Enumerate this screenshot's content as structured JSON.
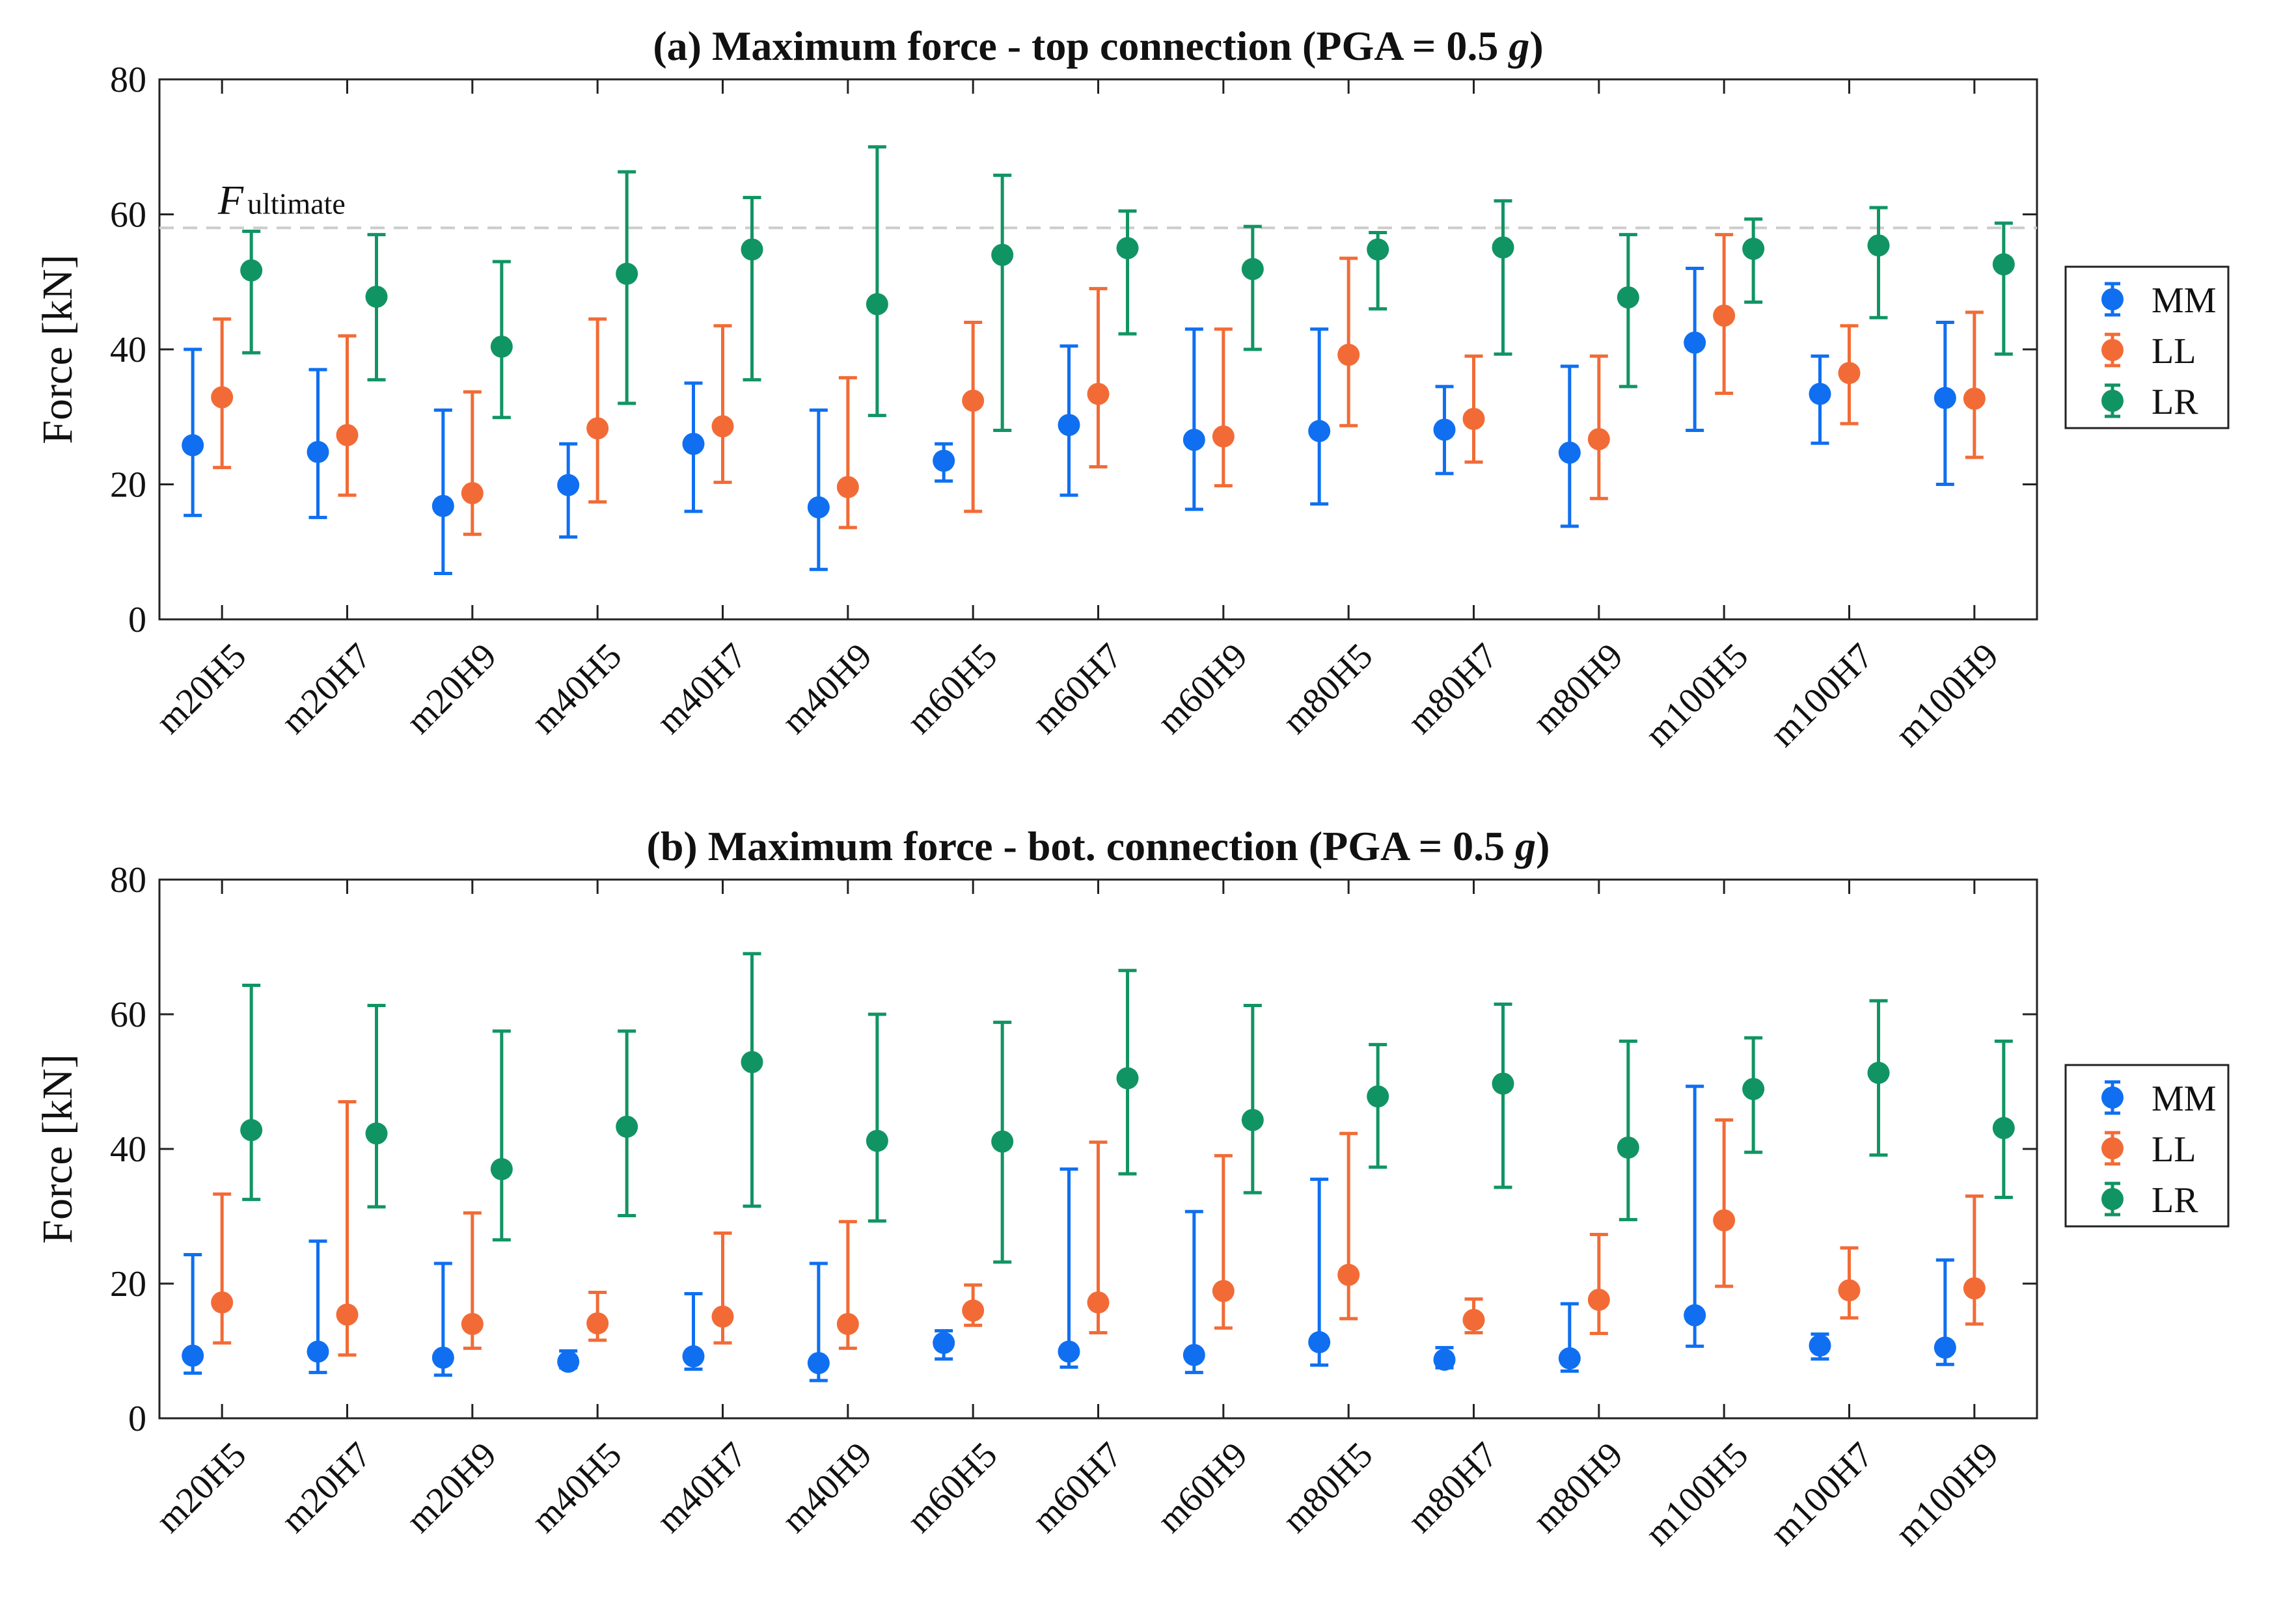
{
  "colors": {
    "MM": "#0f6ff0",
    "LL": "#f26b36",
    "LR": "#119463",
    "axis": "#222222",
    "ref": "#cccccc"
  },
  "categories": [
    "m20H5",
    "m20H7",
    "m20H9",
    "m40H5",
    "m40H7",
    "m40H9",
    "m60H5",
    "m60H7",
    "m60H9",
    "m80H5",
    "m80H7",
    "m80H9",
    "m100H5",
    "m100H7",
    "m100H9"
  ],
  "chart_data": [
    {
      "type": "scatter",
      "title": "(a) Maximum force - top connection (PGA = 0.5 g)",
      "title_main": "(a) Maximum force - top connection (PGA = 0.5 ",
      "title_italic": "g",
      "title_end": ")",
      "ylabel": "Force [kN]",
      "ylim": [
        0,
        80
      ],
      "yticks": [
        0,
        20,
        40,
        60,
        80
      ],
      "reference_line": {
        "value": 58,
        "label_main": "F",
        "label_sub": "ultimate"
      },
      "legend": [
        "MM",
        "LL",
        "LR"
      ],
      "series": [
        {
          "name": "MM",
          "values": [
            25.8,
            24.8,
            16.8,
            19.9,
            26.0,
            16.6,
            23.5,
            28.8,
            26.6,
            27.9,
            28.1,
            24.7,
            41.0,
            33.4,
            32.8
          ],
          "lower": [
            15.4,
            15.1,
            6.8,
            12.2,
            16.0,
            7.4,
            20.5,
            18.4,
            16.3,
            17.1,
            21.6,
            13.8,
            28.0,
            26.1,
            20.0
          ],
          "upper": [
            40.0,
            37.0,
            31.0,
            26.0,
            35.0,
            31.0,
            26.0,
            40.5,
            43.0,
            43.0,
            34.5,
            37.5,
            52.0,
            39.0,
            44.0
          ]
        },
        {
          "name": "LL",
          "values": [
            32.9,
            27.3,
            18.7,
            28.3,
            28.6,
            19.6,
            32.4,
            33.4,
            27.1,
            39.2,
            29.7,
            26.7,
            45.0,
            36.5,
            32.7
          ],
          "lower": [
            22.5,
            18.4,
            12.6,
            17.4,
            20.3,
            13.6,
            16.0,
            22.6,
            19.8,
            28.7,
            23.3,
            17.9,
            33.5,
            29.0,
            24.0
          ],
          "upper": [
            44.5,
            42.0,
            33.7,
            44.5,
            43.5,
            35.8,
            44.0,
            49.0,
            43.0,
            53.5,
            39.0,
            39.0,
            57.0,
            43.5,
            45.5
          ]
        },
        {
          "name": "LR",
          "values": [
            51.7,
            47.8,
            40.4,
            51.2,
            54.8,
            46.7,
            54.0,
            55.0,
            51.9,
            54.8,
            55.1,
            47.7,
            54.9,
            55.4,
            52.6
          ],
          "lower": [
            39.5,
            35.5,
            29.9,
            32.0,
            35.5,
            30.2,
            28.0,
            42.3,
            40.0,
            46.0,
            39.3,
            34.5,
            47.0,
            44.7,
            39.3
          ],
          "upper": [
            57.5,
            57.0,
            53.0,
            66.3,
            62.5,
            70.0,
            65.8,
            60.5,
            58.2,
            57.3,
            62.0,
            57.0,
            59.3,
            61.0,
            58.7
          ]
        }
      ]
    },
    {
      "type": "scatter",
      "title": "(b) Maximum force - bot. connection (PGA = 0.5 g)",
      "title_main": "(b) Maximum force - bot. connection (PGA = 0.5 ",
      "title_italic": "g",
      "title_end": ")",
      "ylabel": "Force [kN]",
      "ylim": [
        0,
        80
      ],
      "yticks": [
        0,
        20,
        40,
        60,
        80
      ],
      "legend": [
        "MM",
        "LL",
        "LR"
      ],
      "series": [
        {
          "name": "MM",
          "values": [
            9.3,
            9.9,
            9.0,
            8.4,
            9.2,
            8.2,
            11.2,
            9.9,
            9.4,
            11.3,
            8.7,
            8.9,
            15.3,
            10.8,
            10.5
          ],
          "lower": [
            6.7,
            6.8,
            6.4,
            7.5,
            7.3,
            5.6,
            8.8,
            7.6,
            6.8,
            7.9,
            7.5,
            7.0,
            10.7,
            8.8,
            8.0
          ],
          "upper": [
            24.3,
            26.3,
            23.0,
            10.0,
            18.5,
            23.0,
            13.0,
            37.0,
            30.7,
            35.5,
            10.5,
            17.0,
            49.3,
            12.5,
            23.5
          ]
        },
        {
          "name": "LL",
          "values": [
            17.2,
            15.4,
            14.0,
            14.1,
            15.1,
            14.0,
            16.0,
            17.2,
            18.9,
            21.3,
            14.6,
            17.6,
            29.4,
            19.0,
            19.3
          ],
          "lower": [
            11.2,
            9.4,
            10.4,
            11.6,
            11.2,
            10.4,
            13.8,
            12.7,
            13.4,
            14.8,
            12.7,
            12.6,
            19.6,
            14.9,
            14.0
          ],
          "upper": [
            33.3,
            47.0,
            30.5,
            18.7,
            27.5,
            29.2,
            19.8,
            41.0,
            39.0,
            42.3,
            17.7,
            27.3,
            44.3,
            25.3,
            33.0
          ]
        },
        {
          "name": "LR",
          "values": [
            42.8,
            42.3,
            37.0,
            43.3,
            52.9,
            41.2,
            41.1,
            50.5,
            44.3,
            47.8,
            49.7,
            40.2,
            48.9,
            51.3,
            43.1
          ],
          "lower": [
            32.5,
            31.4,
            26.5,
            30.1,
            31.5,
            29.3,
            23.2,
            36.3,
            33.5,
            37.3,
            34.3,
            29.5,
            39.5,
            39.1,
            32.8
          ],
          "upper": [
            64.3,
            61.3,
            57.5,
            57.5,
            69.0,
            60.0,
            58.8,
            66.5,
            61.3,
            55.5,
            61.5,
            56.0,
            56.5,
            62.0,
            56.0
          ]
        }
      ]
    }
  ]
}
